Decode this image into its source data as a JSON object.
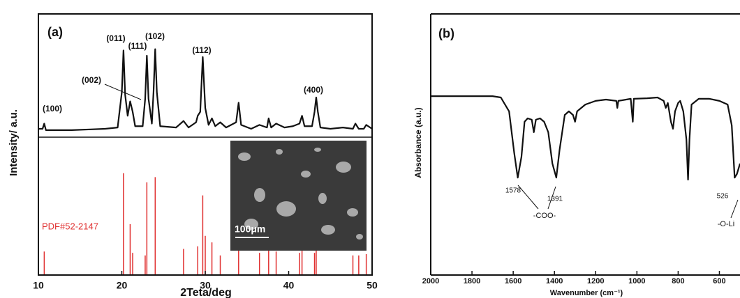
{
  "chart_data": [
    {
      "type": "line",
      "xlabel": "2Teta/deg",
      "ylabel": "Intensity/ a.u.",
      "annotations": [
        "(a)",
        "(100)",
        "(002)",
        "(011)",
        "(111)",
        "(102)",
        "(112)",
        "(400)"
      ],
      "inset_label": "100μm",
      "xlim": [
        10,
        50
      ],
      "xticks": [
        10,
        20,
        30,
        40,
        50
      ],
      "ylim": [
        0,
        200
      ],
      "series": [
        {
          "color": "#111111",
          "x": [
            10,
            10.5,
            10.7,
            10.9,
            12,
            14,
            16,
            18,
            19.5,
            20.0,
            20.2,
            20.4,
            20.7,
            21.0,
            21.3,
            21.6,
            22.5,
            22.8,
            23.0,
            23.2,
            23.6,
            23.8,
            24.0,
            24.2,
            24.6,
            26.5,
            27.4,
            28.0,
            28.9,
            29.1,
            29.4,
            29.7,
            30.0,
            30.4,
            30.8,
            31.2,
            31.8,
            32.5,
            33.7,
            34.0,
            34.3,
            35.5,
            36.5,
            37.4,
            37.6,
            37.9,
            38.5,
            39.5,
            40.5,
            41.3,
            41.6,
            41.9,
            42.8,
            43.1,
            43.3,
            43.5,
            43.8,
            45,
            46.5,
            47.7,
            48.0,
            48.4,
            49.0,
            49.3,
            50
          ],
          "values": [
            112,
            112,
            116,
            111,
            111,
            111,
            111.5,
            112,
            113,
            140,
            172,
            138,
            122,
            133,
            125,
            114,
            114,
            135,
            168,
            135,
            116,
            140,
            173,
            140,
            114,
            113,
            118,
            113,
            117,
            122,
            125,
            167,
            128,
            115,
            120,
            114,
            117,
            113,
            117,
            132,
            115,
            112,
            115,
            113,
            120,
            113,
            116,
            113,
            114,
            116,
            122,
            114,
            114,
            125,
            136,
            125,
            113,
            112,
            113,
            112,
            116,
            112,
            112,
            115,
            112
          ]
        },
        {
          "name": "PDF#52-2147",
          "type": "stick",
          "color": "#e03030",
          "x": [
            10.7,
            20.2,
            21.0,
            21.3,
            22.8,
            23.0,
            24.0,
            27.4,
            29.1,
            29.7,
            30.0,
            30.8,
            31.8,
            34.0,
            36.5,
            37.6,
            38.5,
            41.3,
            41.6,
            43.1,
            43.3,
            47.7,
            48.4,
            49.3
          ],
          "values": [
            18,
            78,
            39,
            17,
            15,
            71,
            75,
            20,
            22,
            61,
            30,
            25,
            15,
            24,
            17,
            20,
            18,
            17,
            21,
            17,
            22,
            15,
            15,
            16
          ]
        }
      ]
    },
    {
      "type": "line",
      "xlabel": "Wavenumber (cm⁻¹)",
      "ylabel": "Absorbance (a.u.)",
      "annotations": [
        "(b)",
        "1578",
        "1391",
        "526",
        "-COO-",
        "-O-Li"
      ],
      "xlim": [
        2000,
        500
      ],
      "xticks": [
        2000,
        1800,
        1600,
        1400,
        1200,
        1000,
        800,
        600
      ],
      "ylim": [
        0,
        100
      ],
      "series": [
        {
          "color": "#111111",
          "x": [
            2000,
            1700,
            1660,
            1620,
            1595,
            1578,
            1560,
            1545,
            1530,
            1510,
            1500,
            1490,
            1470,
            1450,
            1430,
            1410,
            1391,
            1375,
            1350,
            1330,
            1310,
            1300,
            1290,
            1250,
            1200,
            1150,
            1100,
            1095,
            1090,
            1030,
            1020,
            1015,
            950,
            900,
            870,
            860,
            850,
            835,
            825,
            815,
            800,
            790,
            775,
            760,
            752,
            745,
            735,
            700,
            650,
            600,
            560,
            540,
            526,
            515,
            505,
            500
          ],
          "values": [
            68.5,
            68.5,
            68,
            62.7,
            46.7,
            37.3,
            45.3,
            58.7,
            60,
            59.5,
            54.7,
            59.5,
            60,
            58.7,
            54.7,
            42.7,
            37.3,
            48,
            61.3,
            62.7,
            61.3,
            58.7,
            62.7,
            65.3,
            66.7,
            67.2,
            66.7,
            64,
            66.7,
            67.5,
            58.7,
            67.5,
            67.7,
            68,
            66.7,
            64,
            65.9,
            58.7,
            56,
            62.7,
            65.9,
            66.7,
            62.7,
            52,
            36.5,
            52,
            65.3,
            67.5,
            67.5,
            66.7,
            65.3,
            57.3,
            37.3,
            38.7,
            41.3,
            42.7
          ]
        }
      ]
    }
  ]
}
